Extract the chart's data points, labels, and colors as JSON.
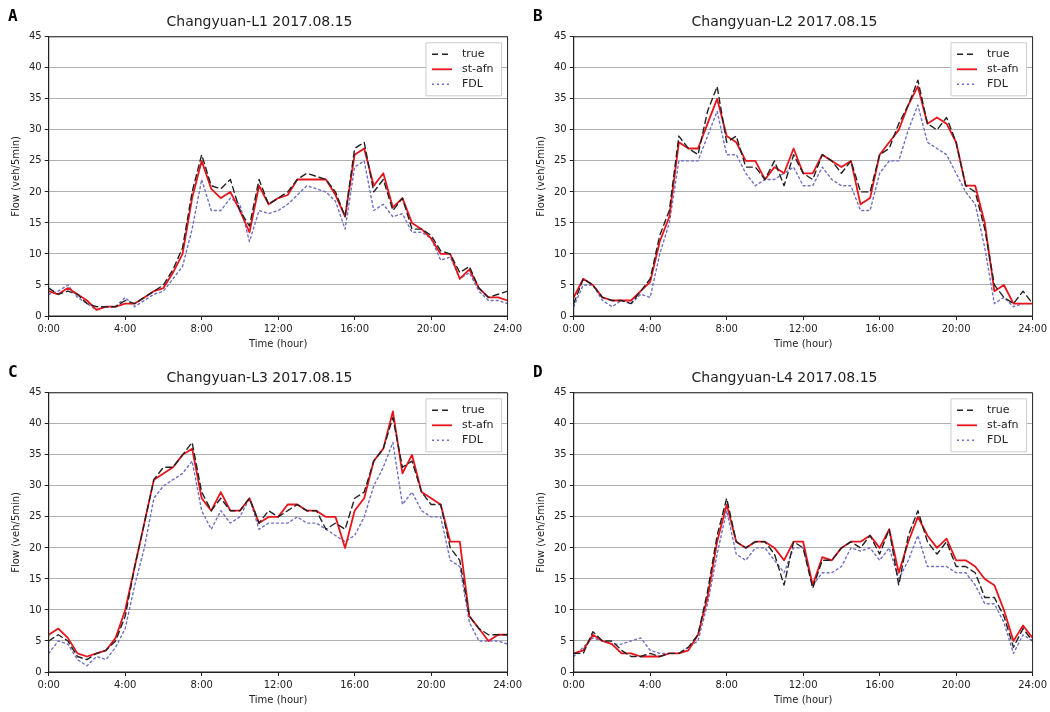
{
  "chart_data": [
    {
      "type": "line",
      "title": "Changyuan-L1 2017.08.15",
      "xlabel": "Time (hour)",
      "ylabel": "Flow (veh/5min)",
      "annotations": [
        "A"
      ],
      "grid": "y",
      "legend": "top right",
      "marker": "none",
      "xlim": [
        0,
        24
      ],
      "xticks": [
        {
          "value": 0,
          "label": "0:00"
        },
        {
          "value": 4,
          "label": "4:00"
        },
        {
          "value": 8,
          "label": "8:00"
        },
        {
          "value": 12,
          "label": "12:00"
        },
        {
          "value": 16,
          "label": "16:00"
        },
        {
          "value": 20,
          "label": "20:00"
        },
        {
          "value": 24,
          "label": "24:00"
        }
      ],
      "ylim": [
        0,
        45
      ],
      "yticks": [
        0,
        5,
        10,
        15,
        20,
        25,
        30,
        35,
        40,
        45
      ],
      "x": [
        0,
        0.5,
        1,
        1.5,
        2,
        2.5,
        3,
        3.5,
        4,
        4.5,
        5,
        5.5,
        6,
        6.5,
        7,
        7.5,
        8,
        8.5,
        9,
        9.5,
        10,
        10.5,
        11,
        11.5,
        12,
        12.5,
        13,
        13.5,
        14,
        14.5,
        15,
        15.5,
        16,
        16.5,
        17,
        17.5,
        18,
        18.5,
        19,
        19.5,
        20,
        20.5,
        21,
        21.5,
        22,
        22.5,
        23,
        23.5,
        24
      ],
      "series": [
        {
          "name": "true",
          "color": "#222222",
          "line_style": "dashed",
          "values": [
            4.5,
            3.5,
            4,
            3.5,
            2,
            1.5,
            1.5,
            1.5,
            2.5,
            2,
            3,
            4,
            5,
            7.5,
            11,
            20,
            26,
            21,
            20.5,
            22,
            17,
            14.5,
            22,
            18,
            19,
            20,
            22,
            23,
            22.5,
            22,
            20,
            16,
            27,
            28,
            20,
            22,
            17,
            19,
            14,
            14,
            13,
            10.5,
            10,
            7,
            8,
            4.5,
            3,
            3.5,
            4
          ]
        },
        {
          "name": "st-afn",
          "color": "#e8141c",
          "line_style": "solid",
          "values": [
            4,
            3.5,
            4.5,
            3.5,
            2.5,
            1,
            1.5,
            1.5,
            2,
            2,
            3,
            4,
            4.5,
            7,
            10,
            19,
            25,
            20.5,
            19,
            20,
            17,
            13.5,
            21,
            18,
            19,
            19.5,
            22,
            22,
            22,
            22,
            19.5,
            16,
            26,
            27,
            21,
            23,
            17.5,
            19,
            15,
            14,
            12.5,
            10,
            10,
            6,
            7.5,
            4.5,
            3,
            3,
            2.5
          ]
        },
        {
          "name": "FDL",
          "color": "#6f6fc4",
          "line_style": "dotted",
          "values": [
            3.5,
            4,
            5,
            3,
            2,
            1,
            1.5,
            1.5,
            3,
            1.5,
            2.5,
            3.5,
            4,
            6,
            8,
            14,
            22,
            17,
            17,
            19,
            18,
            12,
            17,
            16.5,
            17,
            18,
            19.5,
            21,
            20.5,
            20,
            18.5,
            14,
            24,
            25,
            17,
            18,
            16,
            16.5,
            13.5,
            13.5,
            12.5,
            9,
            9.5,
            6,
            7,
            4,
            2.5,
            2.5,
            2
          ]
        }
      ]
    },
    {
      "type": "line",
      "title": "Changyuan-L2 2017.08.15",
      "xlabel": "Time (hour)",
      "ylabel": "Flow (veh/5min)",
      "annotations": [
        "B"
      ],
      "grid": "y",
      "legend": "top right",
      "marker": "none",
      "xlim": [
        0,
        24
      ],
      "xticks": [
        {
          "value": 0,
          "label": "0:00"
        },
        {
          "value": 4,
          "label": "4:00"
        },
        {
          "value": 8,
          "label": "8:00"
        },
        {
          "value": 12,
          "label": "12:00"
        },
        {
          "value": 16,
          "label": "16:00"
        },
        {
          "value": 20,
          "label": "20:00"
        },
        {
          "value": 24,
          "label": "24:00"
        }
      ],
      "ylim": [
        0,
        45
      ],
      "yticks": [
        0,
        5,
        10,
        15,
        20,
        25,
        30,
        35,
        40,
        45
      ],
      "x": [
        0,
        0.5,
        1,
        1.5,
        2,
        2.5,
        3,
        3.5,
        4,
        4.5,
        5,
        5.5,
        6,
        6.5,
        7,
        7.5,
        8,
        8.5,
        9,
        9.5,
        10,
        10.5,
        11,
        11.5,
        12,
        12.5,
        13,
        13.5,
        14,
        14.5,
        15,
        15.5,
        16,
        16.5,
        17,
        17.5,
        18,
        18.5,
        19,
        19.5,
        20,
        20.5,
        21,
        21.5,
        22,
        22.5,
        23,
        23.5,
        24
      ],
      "series": [
        {
          "name": "true",
          "color": "#222222",
          "line_style": "dashed",
          "values": [
            2,
            6,
            5,
            3,
            2.5,
            2.5,
            2,
            4,
            6,
            13,
            17,
            29,
            27,
            26,
            33,
            37,
            28,
            29,
            24,
            24,
            22,
            25,
            21,
            26,
            23,
            22,
            26,
            25,
            23,
            25,
            20,
            20,
            26,
            27,
            31,
            34,
            38,
            31,
            30,
            32,
            28,
            21,
            20,
            14,
            5,
            3,
            2,
            4,
            2
          ]
        },
        {
          "name": "st-afn",
          "color": "#e8141c",
          "line_style": "solid",
          "values": [
            3,
            6,
            5,
            3,
            2.5,
            2.5,
            2.5,
            4,
            5.5,
            12,
            16,
            28,
            27,
            27,
            31,
            35,
            29,
            28,
            25,
            25,
            22,
            24,
            23,
            27,
            23,
            23,
            26,
            25,
            24,
            25,
            18,
            19,
            26,
            28,
            30,
            34,
            37,
            31,
            32,
            31,
            28,
            21,
            21,
            15,
            4,
            5,
            2,
            2,
            2
          ]
        },
        {
          "name": "FDL",
          "color": "#6f6fc4",
          "line_style": "dotted",
          "values": [
            1.5,
            5,
            5,
            2.5,
            1.5,
            2.5,
            2,
            3.5,
            3,
            10,
            15,
            25,
            25,
            25,
            29,
            33,
            26,
            26,
            23,
            21,
            22,
            22,
            23,
            24,
            21,
            21,
            24,
            22,
            21,
            21,
            17,
            17,
            23,
            25,
            25,
            30,
            34,
            28,
            27,
            26,
            23,
            20,
            18,
            11,
            2,
            3,
            1.5,
            2,
            2
          ]
        }
      ]
    },
    {
      "type": "line",
      "title": "Changyuan-L3 2017.08.15",
      "xlabel": "Time (hour)",
      "ylabel": "Flow (veh/5min)",
      "annotations": [
        "C"
      ],
      "grid": "y",
      "legend": "top right",
      "marker": "none",
      "xlim": [
        0,
        24
      ],
      "xticks": [
        {
          "value": 0,
          "label": "0:00"
        },
        {
          "value": 4,
          "label": "4:00"
        },
        {
          "value": 8,
          "label": "8:00"
        },
        {
          "value": 12,
          "label": "12:00"
        },
        {
          "value": 16,
          "label": "16:00"
        },
        {
          "value": 20,
          "label": "20:00"
        },
        {
          "value": 24,
          "label": "24:00"
        }
      ],
      "ylim": [
        0,
        45
      ],
      "yticks": [
        0,
        5,
        10,
        15,
        20,
        25,
        30,
        35,
        40,
        45
      ],
      "x": [
        0,
        0.5,
        1,
        1.5,
        2,
        2.5,
        3,
        3.5,
        4,
        4.5,
        5,
        5.5,
        6,
        6.5,
        7,
        7.5,
        8,
        8.5,
        9,
        9.5,
        10,
        10.5,
        11,
        11.5,
        12,
        12.5,
        13,
        13.5,
        14,
        14.5,
        15,
        15.5,
        16,
        16.5,
        17,
        17.5,
        18,
        18.5,
        19,
        19.5,
        20,
        20.5,
        21,
        21.5,
        22,
        22.5,
        23,
        23.5,
        24
      ],
      "series": [
        {
          "name": "true",
          "color": "#222222",
          "line_style": "dashed",
          "values": [
            5,
            6,
            5,
            2.5,
            2,
            3,
            3.5,
            5,
            9,
            17,
            24,
            31,
            33,
            33,
            35,
            37,
            29,
            26,
            28,
            26,
            26,
            28,
            24,
            26,
            25,
            26,
            27,
            26,
            26,
            23,
            24,
            23,
            28,
            29,
            34,
            36,
            41,
            33,
            34,
            29,
            27,
            27,
            20,
            18,
            9,
            7,
            6,
            6,
            6
          ]
        },
        {
          "name": "st-afn",
          "color": "#e8141c",
          "line_style": "solid",
          "values": [
            6,
            7,
            5.5,
            3,
            2.5,
            3,
            3.5,
            5.5,
            10,
            17,
            24,
            31,
            32,
            33,
            35,
            36,
            28,
            26,
            29,
            26,
            26,
            28,
            24,
            25,
            25,
            27,
            27,
            26,
            26,
            25,
            25,
            20,
            26,
            28,
            34,
            36,
            42,
            32,
            35,
            29,
            28,
            27,
            21,
            21,
            9,
            7,
            5,
            6,
            6
          ]
        },
        {
          "name": "FDL",
          "color": "#6f6fc4",
          "line_style": "dotted",
          "values": [
            3,
            5,
            4.5,
            2,
            1,
            2.5,
            2,
            4,
            7,
            14,
            20,
            28,
            30,
            31,
            32,
            34,
            26,
            23,
            26,
            24,
            25,
            28,
            23,
            24,
            24,
            24,
            25,
            24,
            24,
            23,
            22,
            21,
            22,
            25,
            30,
            33,
            37,
            27,
            29,
            26,
            25,
            25,
            18,
            17,
            8,
            5,
            5,
            5,
            4.5
          ]
        }
      ]
    },
    {
      "type": "line",
      "title": "Changyuan-L4 2017.08.15",
      "xlabel": "Time (hour)",
      "ylabel": "Flow (veh/5min)",
      "annotations": [
        "D"
      ],
      "grid": "y",
      "legend": "top right",
      "marker": "none",
      "xlim": [
        0,
        24
      ],
      "xticks": [
        {
          "value": 0,
          "label": "0:00"
        },
        {
          "value": 4,
          "label": "4:00"
        },
        {
          "value": 8,
          "label": "8:00"
        },
        {
          "value": 12,
          "label": "12:00"
        },
        {
          "value": 16,
          "label": "16:00"
        },
        {
          "value": 20,
          "label": "20:00"
        },
        {
          "value": 24,
          "label": "24:00"
        }
      ],
      "ylim": [
        0,
        45
      ],
      "yticks": [
        0,
        5,
        10,
        15,
        20,
        25,
        30,
        35,
        40,
        45
      ],
      "x": [
        0,
        0.5,
        1,
        1.5,
        2,
        2.5,
        3,
        3.5,
        4,
        4.5,
        5,
        5.5,
        6,
        6.5,
        7,
        7.5,
        8,
        8.5,
        9,
        9.5,
        10,
        10.5,
        11,
        11.5,
        12,
        12.5,
        13,
        13.5,
        14,
        14.5,
        15,
        15.5,
        16,
        16.5,
        17,
        17.5,
        18,
        18.5,
        19,
        19.5,
        20,
        20.5,
        21,
        21.5,
        22,
        22.5,
        23,
        23.5,
        24
      ],
      "series": [
        {
          "name": "true",
          "color": "#222222",
          "line_style": "dashed",
          "values": [
            3,
            3,
            6.5,
            5,
            5,
            3.5,
            2.5,
            2.5,
            3,
            2.5,
            3,
            3,
            4,
            6,
            13,
            22,
            28,
            21,
            20,
            21,
            21,
            19,
            14,
            21,
            20,
            13.5,
            18,
            18,
            20,
            21,
            20,
            22,
            19,
            23,
            14,
            22,
            26,
            21,
            19,
            21,
            17,
            17,
            16,
            12,
            12,
            9,
            4,
            7,
            5
          ]
        },
        {
          "name": "st-afn",
          "color": "#e8141c",
          "line_style": "solid",
          "values": [
            3,
            3.5,
            6,
            5,
            4.5,
            3,
            3,
            2.5,
            2.5,
            2.5,
            3,
            3,
            3.5,
            6,
            12,
            21,
            27,
            21,
            20,
            21,
            21,
            20,
            18,
            21,
            21,
            14,
            18.5,
            18,
            20,
            21,
            21,
            22,
            20,
            23,
            16,
            21,
            25,
            22,
            20,
            21.5,
            18,
            18,
            17,
            15,
            14,
            10,
            5,
            7.5,
            5.5
          ]
        },
        {
          "name": "FDL",
          "color": "#6f6fc4",
          "line_style": "dotted",
          "values": [
            2.5,
            4,
            5.5,
            5,
            4.5,
            4.5,
            5,
            5.5,
            3.5,
            3,
            3,
            3,
            4,
            5,
            11,
            19,
            26,
            19,
            18,
            20,
            20,
            18,
            16,
            20,
            20,
            14,
            16,
            16,
            17,
            20,
            19.5,
            20,
            18,
            20,
            15,
            18,
            22,
            17,
            17,
            17,
            16,
            16,
            14,
            11,
            11,
            8,
            3,
            6,
            5
          ]
        }
      ]
    }
  ]
}
